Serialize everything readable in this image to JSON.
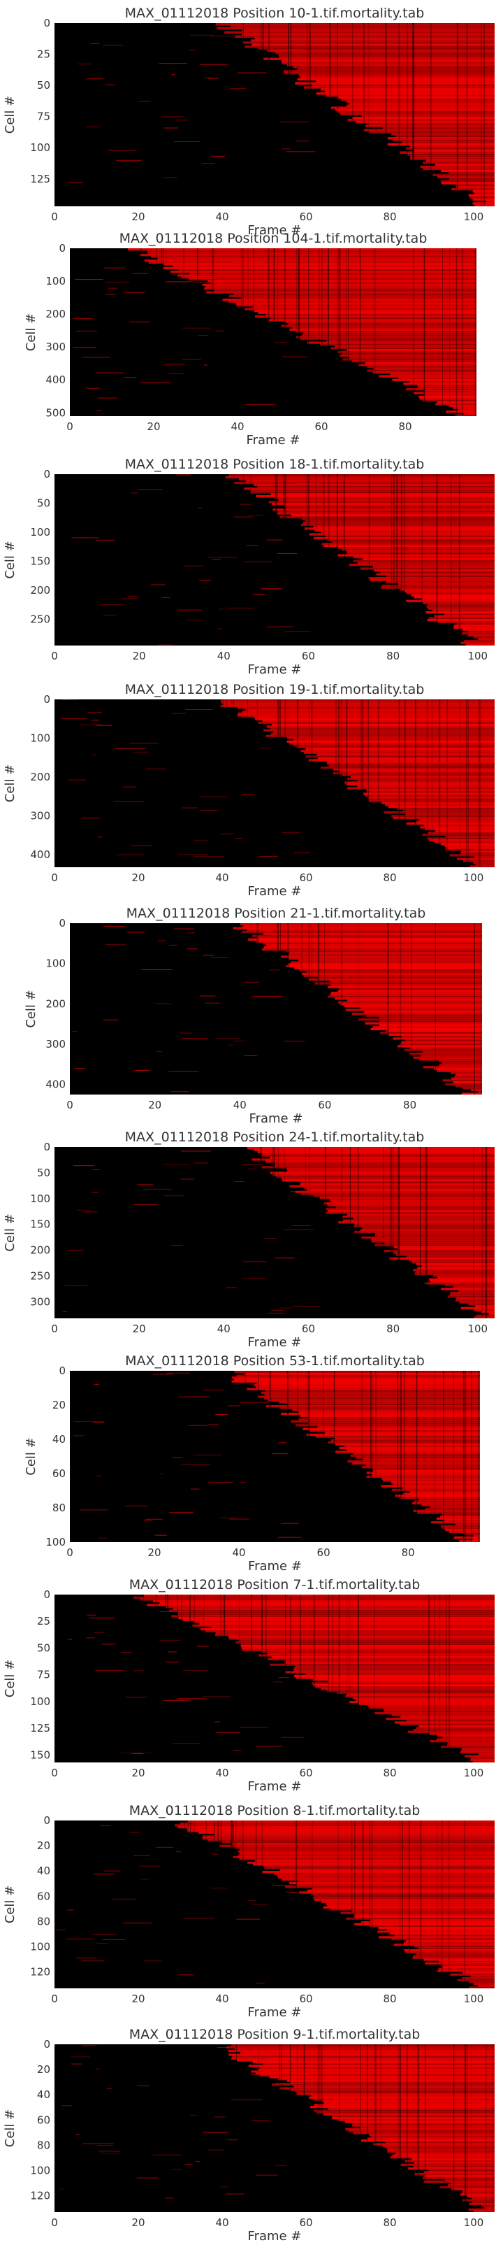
{
  "chart_data": [
    {
      "type": "heatmap",
      "title": "MAX_01112018 Position 10-1.tif.mortality.tab",
      "xlabel": "Frame #",
      "ylabel": "Cell #",
      "xlim": [
        0,
        105
      ],
      "ylim": [
        0,
        147
      ],
      "xticks": [
        "0",
        "20",
        "40",
        "60",
        "80",
        "100"
      ],
      "yticks": [
        "0",
        "25",
        "50",
        "75",
        "100",
        "125"
      ],
      "onset_frame": {
        "first_cell": 40,
        "last_cell": 103
      },
      "colors": {
        "background": "#000000",
        "dead": "#ff0000"
      }
    },
    {
      "type": "heatmap",
      "title": "MAX_01112018 Position 104-1.tif.mortality.tab",
      "xlabel": "Frame #",
      "ylabel": "Cell #",
      "xlim": [
        0,
        97
      ],
      "ylim": [
        0,
        510
      ],
      "xticks": [
        "0",
        "20",
        "40",
        "60",
        "80"
      ],
      "yticks": [
        "0",
        "100",
        "200",
        "300",
        "400",
        "500"
      ],
      "onset_frame": {
        "first_cell": 15,
        "last_cell": 95
      },
      "colors": {
        "background": "#000000",
        "dead": "#ff0000"
      }
    },
    {
      "type": "heatmap",
      "title": "MAX_01112018 Position 18-1.tif.mortality.tab",
      "xlabel": "Frame #",
      "ylabel": "Cell #",
      "xlim": [
        0,
        104
      ],
      "ylim": [
        0,
        295
      ],
      "xticks": [
        "0",
        "20",
        "40",
        "60",
        "80",
        "100"
      ],
      "yticks": [
        "0",
        "50",
        "100",
        "150",
        "200",
        "250"
      ],
      "onset_frame": {
        "first_cell": 42,
        "last_cell": 100
      },
      "colors": {
        "background": "#000000",
        "dead": "#ff0000"
      }
    },
    {
      "type": "heatmap",
      "title": "MAX_01112018 Position 19-1.tif.mortality.tab",
      "xlabel": "Frame #",
      "ylabel": "Cell #",
      "xlim": [
        0,
        105
      ],
      "ylim": [
        0,
        432
      ],
      "xticks": [
        "0",
        "20",
        "40",
        "60",
        "80",
        "100"
      ],
      "yticks": [
        "0",
        "100",
        "200",
        "300",
        "400"
      ],
      "onset_frame": {
        "first_cell": 40,
        "last_cell": 102
      },
      "colors": {
        "background": "#000000",
        "dead": "#ff0000"
      }
    },
    {
      "type": "heatmap",
      "title": "MAX_01112018 Position 21-1.tif.mortality.tab",
      "xlabel": "Frame #",
      "ylabel": "Cell #",
      "xlim": [
        0,
        97
      ],
      "ylim": [
        0,
        425
      ],
      "xticks": [
        "0",
        "20",
        "40",
        "60",
        "80"
      ],
      "yticks": [
        "0",
        "100",
        "200",
        "300",
        "400"
      ],
      "onset_frame": {
        "first_cell": 40,
        "last_cell": 95
      },
      "colors": {
        "background": "#000000",
        "dead": "#ff0000"
      }
    },
    {
      "type": "heatmap",
      "title": "MAX_01112018 Position 24-1.tif.mortality.tab",
      "xlabel": "Frame #",
      "ylabel": "Cell #",
      "xlim": [
        0,
        104
      ],
      "ylim": [
        0,
        332
      ],
      "xticks": [
        "0",
        "20",
        "40",
        "60",
        "80",
        "100"
      ],
      "yticks": [
        "0",
        "50",
        "100",
        "150",
        "200",
        "250",
        "300"
      ],
      "onset_frame": {
        "first_cell": 45,
        "last_cell": 102
      },
      "colors": {
        "background": "#000000",
        "dead": "#ff0000"
      }
    },
    {
      "type": "heatmap",
      "title": "MAX_01112018 Position 53-1.tif.mortality.tab",
      "xlabel": "Frame #",
      "ylabel": "Cell #",
      "xlim": [
        0,
        97
      ],
      "ylim": [
        0,
        100
      ],
      "xticks": [
        "0",
        "20",
        "40",
        "60",
        "80"
      ],
      "yticks": [
        "0",
        "20",
        "40",
        "60",
        "80",
        "100"
      ],
      "onset_frame": {
        "first_cell": 38,
        "last_cell": 95
      },
      "colors": {
        "background": "#000000",
        "dead": "#ff0000"
      }
    },
    {
      "type": "heatmap",
      "title": "MAX_01112018 Position 7-1.tif.mortality.tab",
      "xlabel": "Frame #",
      "ylabel": "Cell #",
      "xlim": [
        0,
        105
      ],
      "ylim": [
        0,
        157
      ],
      "xticks": [
        "0",
        "20",
        "40",
        "60",
        "80",
        "100"
      ],
      "yticks": [
        "0",
        "25",
        "50",
        "75",
        "100",
        "125",
        "150"
      ],
      "onset_frame": {
        "first_cell": 20,
        "last_cell": 103
      },
      "colors": {
        "background": "#000000",
        "dead": "#ff0000"
      }
    },
    {
      "type": "heatmap",
      "title": "MAX_01112018 Position 8-1.tif.mortality.tab",
      "xlabel": "Frame #",
      "ylabel": "Cell #",
      "xlim": [
        0,
        105
      ],
      "ylim": [
        0,
        133
      ],
      "xticks": [
        "0",
        "20",
        "40",
        "60",
        "80",
        "100"
      ],
      "yticks": [
        "0",
        "20",
        "40",
        "60",
        "80",
        "100",
        "120"
      ],
      "onset_frame": {
        "first_cell": 30,
        "last_cell": 102
      },
      "colors": {
        "background": "#000000",
        "dead": "#ff0000"
      }
    },
    {
      "type": "heatmap",
      "title": "MAX_01112018 Position 9-1.tif.mortality.tab",
      "xlabel": "Frame #",
      "ylabel": "Cell #",
      "xlim": [
        0,
        105
      ],
      "ylim": [
        0,
        133
      ],
      "xticks": [
        "0",
        "20",
        "40",
        "60",
        "80",
        "100"
      ],
      "yticks": [
        "0",
        "20",
        "40",
        "60",
        "80",
        "100",
        "120"
      ],
      "onset_frame": {
        "first_cell": 40,
        "last_cell": 103
      },
      "colors": {
        "background": "#000000",
        "dead": "#ff0000"
      }
    }
  ]
}
